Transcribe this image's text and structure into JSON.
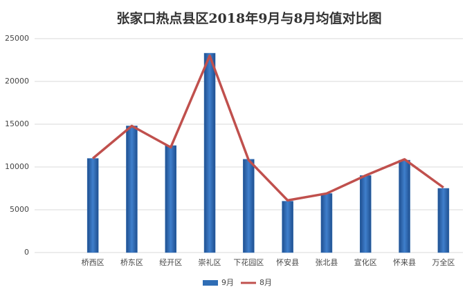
{
  "chart_data": {
    "type": "combo",
    "title": "张家口热点县区2018年9月与8月均值对比图",
    "categories": [
      "桥西区",
      "桥东区",
      "经开区",
      "崇礼区",
      "下花园区",
      "怀安县",
      "张北县",
      "宣化区",
      "怀来县",
      "万全区"
    ],
    "series": [
      {
        "name": "9月",
        "type": "bar",
        "color": "#2f6db5",
        "values": [
          11000,
          14800,
          12500,
          23300,
          10900,
          6000,
          6900,
          9000,
          10800,
          7500
        ]
      },
      {
        "name": "8月",
        "type": "line",
        "color": "#c0504d",
        "values": [
          11000,
          14800,
          12300,
          23000,
          10800,
          6100,
          6900,
          9000,
          10900,
          7600
        ]
      }
    ],
    "ylim": [
      0,
      25000
    ],
    "yticks": [
      0,
      5000,
      10000,
      15000,
      20000,
      25000
    ],
    "grid": true,
    "legend": "bottom"
  }
}
